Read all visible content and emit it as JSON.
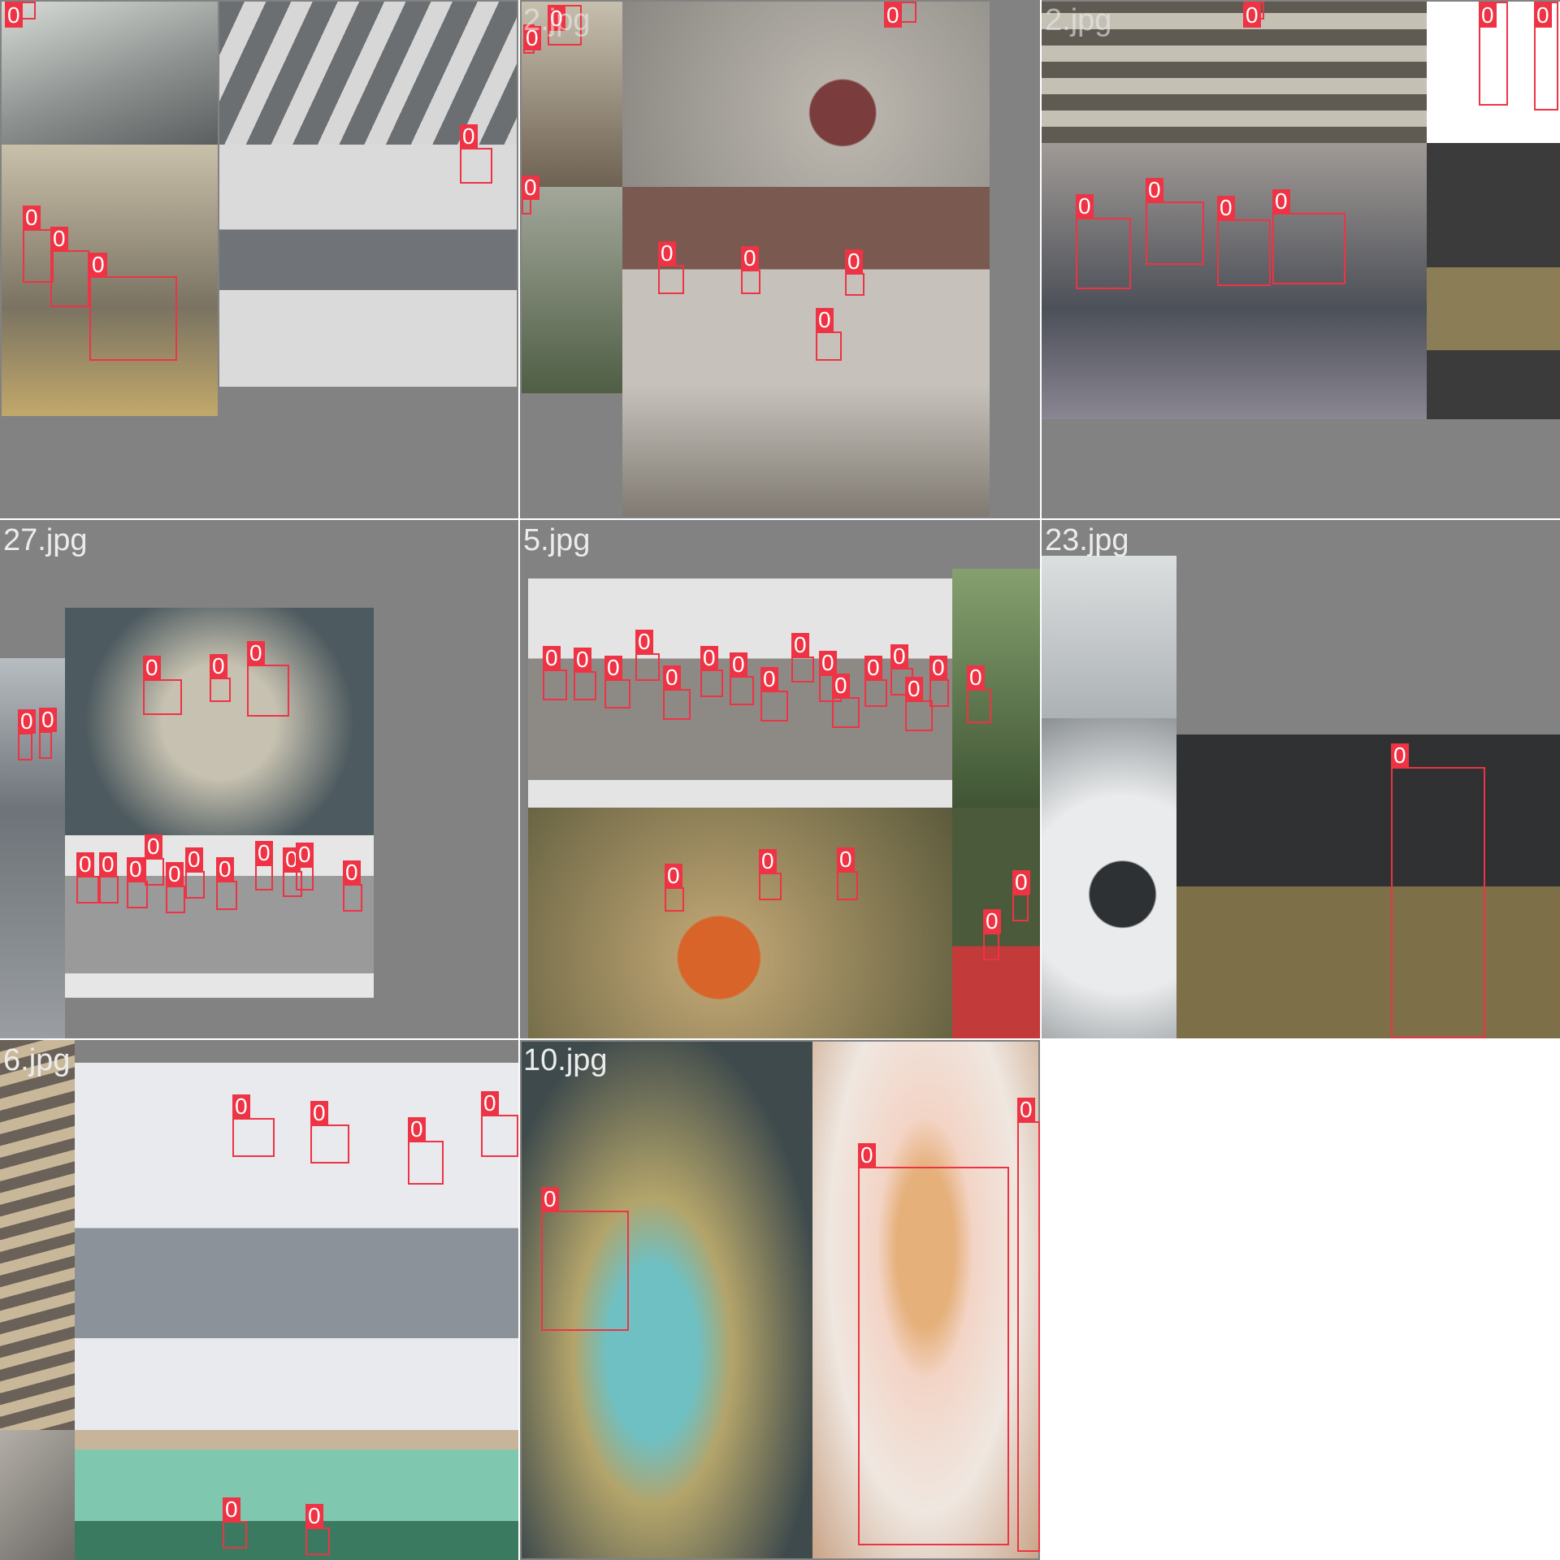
{
  "grid": {
    "background": "#ffffff",
    "cell_fill": "#828282",
    "box_color": "#ee3344",
    "class_label": "0"
  },
  "tiles": [
    {
      "id": "t1",
      "filename": "",
      "photos": [
        {
          "name": "photo-car-windshield",
          "c1": "#8e9290",
          "c2": "#d8dcd8"
        },
        {
          "name": "photo-crosswalk-blind-walker",
          "c1": "#6b6f72",
          "c2": "#d7d7d7"
        },
        {
          "name": "photo-boys-street",
          "c1": "#7a7362",
          "c2": "#c9c0aa"
        },
        {
          "name": "photo-crosswalk-blind-walker-2",
          "c1": "#707478",
          "c2": "#dadada"
        }
      ]
    },
    {
      "id": "t2",
      "filename": "2.jpg",
      "photos": [
        {
          "name": "photo-man-jacket",
          "c1": "#6e6252",
          "c2": "#c7bfae"
        },
        {
          "name": "photo-sitting-man-road",
          "c1": "#8a8782",
          "c2": "#b7b3ab"
        },
        {
          "name": "photo-sidewalk-plants",
          "c1": "#4f5e45",
          "c2": "#a3a79a"
        },
        {
          "name": "photo-police-street",
          "c1": "#807a72",
          "c2": "#c6c2bb"
        }
      ]
    },
    {
      "id": "t3",
      "filename": "2.jpg",
      "photos": [
        {
          "name": "photo-supermarket-shelves",
          "c1": "#5f5a52",
          "c2": "#c4c0b4"
        },
        {
          "name": "photo-legs-white-bg",
          "c1": "#e8e8e8",
          "c2": "#ffffff"
        },
        {
          "name": "photo-schoolgirls",
          "c1": "#4c5058",
          "c2": "#a09a96"
        },
        {
          "name": "photo-dark-fabric",
          "c1": "#3b3b3b",
          "c2": "#8b7d55"
        }
      ]
    },
    {
      "id": "t4",
      "filename": "27.jpg",
      "photos": [
        {
          "name": "photo-hillside-people",
          "c1": "#6d7378",
          "c2": "#b8bdc2"
        },
        {
          "name": "photo-women-in-car",
          "c1": "#4d5a5f",
          "c2": "#c6c1b0"
        },
        {
          "name": "photo-group-shutterstock",
          "c1": "#9a9a9a",
          "c2": "#e6e6e6"
        }
      ]
    },
    {
      "id": "t5",
      "filename": "5.jpg",
      "photos": [
        {
          "name": "photo-group-shutterstock-large",
          "c1": "#8d8a85",
          "c2": "#e4e4e4"
        },
        {
          "name": "photo-trees",
          "c1": "#3f5534",
          "c2": "#86a06f"
        },
        {
          "name": "photo-women-planting",
          "c1": "#5b5a3c",
          "c2": "#b69e6e"
        },
        {
          "name": "photo-woman-red-sari",
          "c1": "#4a5a3a",
          "c2": "#c23a3a"
        }
      ]
    },
    {
      "id": "t6",
      "filename": "23.jpg",
      "photos": [
        {
          "name": "photo-blurry-street",
          "c1": "#9da3a6",
          "c2": "#dcdfe0"
        },
        {
          "name": "photo-white-car",
          "c1": "#8a8f92",
          "c2": "#e9ebec"
        },
        {
          "name": "photo-man-writing-glasses",
          "c1": "#2f3133",
          "c2": "#7d7048"
        }
      ]
    },
    {
      "id": "t7",
      "filename": "6.jpg",
      "photos": [
        {
          "name": "photo-steps",
          "c1": "#6a6258",
          "c2": "#c9b79a"
        },
        {
          "name": "photo-businessmen-walking",
          "c1": "#8c929a",
          "c2": "#e8eaee"
        },
        {
          "name": "photo-animal-fur",
          "c1": "#6d6a66",
          "c2": "#b3aea7"
        },
        {
          "name": "photo-lake-boats",
          "c1": "#3a7a60",
          "c2": "#7fc7ae"
        }
      ]
    },
    {
      "id": "t8",
      "filename": "10.jpg",
      "photos": [
        {
          "name": "photo-woman-sunglasses-car",
          "c1": "#3e4a4c",
          "c2": "#b3a46a"
        },
        {
          "name": "photo-woman-smiling-pink",
          "c1": "#c9a488",
          "c2": "#efe7e0"
        }
      ]
    }
  ]
}
